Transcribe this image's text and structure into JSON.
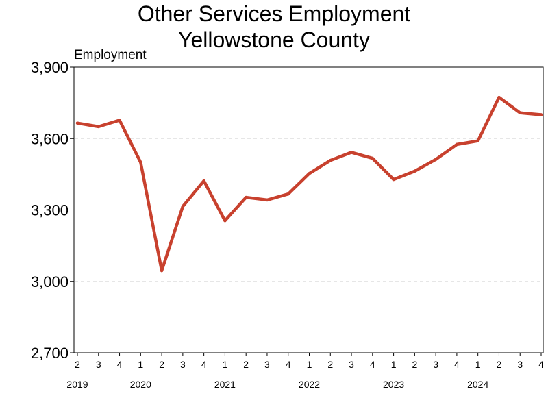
{
  "title_line1": "Other Services Employment",
  "title_line2": "Yellowstone County",
  "chart_data": {
    "type": "line",
    "title": "Other Services Employment Yellowstone County",
    "ylabel": "Employment",
    "xlabel": "",
    "ylim": [
      2700,
      3900
    ],
    "yticks": [
      2700,
      3000,
      3300,
      3600,
      3900
    ],
    "ytick_labels": [
      "2,700",
      "3,000",
      "3,300",
      "3,600",
      "3,900"
    ],
    "grid": "horizontal dashed",
    "line_color": "#c8412e",
    "categories": [
      {
        "quarter": "2",
        "year": "2019"
      },
      {
        "quarter": "3",
        "year": "2019"
      },
      {
        "quarter": "4",
        "year": "2019"
      },
      {
        "quarter": "1",
        "year": "2020"
      },
      {
        "quarter": "2",
        "year": "2020"
      },
      {
        "quarter": "3",
        "year": "2020"
      },
      {
        "quarter": "4",
        "year": "2020"
      },
      {
        "quarter": "1",
        "year": "2021"
      },
      {
        "quarter": "2",
        "year": "2021"
      },
      {
        "quarter": "3",
        "year": "2021"
      },
      {
        "quarter": "4",
        "year": "2021"
      },
      {
        "quarter": "1",
        "year": "2022"
      },
      {
        "quarter": "2",
        "year": "2022"
      },
      {
        "quarter": "3",
        "year": "2022"
      },
      {
        "quarter": "4",
        "year": "2022"
      },
      {
        "quarter": "1",
        "year": "2023"
      },
      {
        "quarter": "2",
        "year": "2023"
      },
      {
        "quarter": "3",
        "year": "2023"
      },
      {
        "quarter": "4",
        "year": "2023"
      },
      {
        "quarter": "1",
        "year": "2024"
      },
      {
        "quarter": "2",
        "year": "2024"
      },
      {
        "quarter": "3",
        "year": "2024"
      },
      {
        "quarter": "4",
        "year": "2024"
      }
    ],
    "year_labels": [
      {
        "label": "2019",
        "first_index": 0,
        "last_index": 0
      },
      {
        "label": "2020",
        "first_index": 3,
        "last_index": 3
      },
      {
        "label": "2021",
        "first_index": 7,
        "last_index": 7
      },
      {
        "label": "2022",
        "first_index": 11,
        "last_index": 11
      },
      {
        "label": "2023",
        "first_index": 15,
        "last_index": 15
      },
      {
        "label": "2024",
        "first_index": 19,
        "last_index": 19
      }
    ],
    "values": [
      3665,
      3650,
      3677,
      3500,
      3045,
      3315,
      3422,
      3255,
      3353,
      3342,
      3367,
      3453,
      3508,
      3542,
      3517,
      3428,
      3463,
      3512,
      3575,
      3590,
      3773,
      3708,
      3700
    ]
  }
}
